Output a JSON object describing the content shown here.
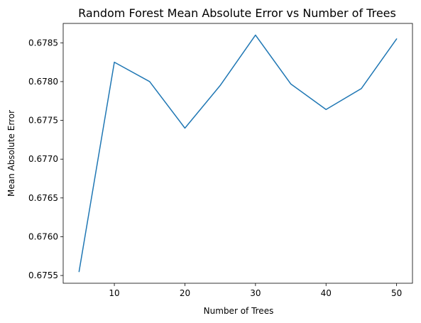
{
  "chart_data": {
    "type": "line",
    "title": "Random Forest Mean Absolute Error vs Number of Trees",
    "xlabel": "Number of Trees",
    "ylabel": "Mean Absolute Error",
    "x": [
      5,
      10,
      15,
      20,
      25,
      30,
      35,
      40,
      45,
      50
    ],
    "series": [
      {
        "values": [
          0.67555,
          0.67825,
          0.678,
          0.6774,
          0.67795,
          0.6786,
          0.67797,
          0.67764,
          0.67791,
          0.67855
        ],
        "color": "#1f77b4"
      }
    ],
    "xlim": [
      2.75,
      52.25
    ],
    "ylim": [
      0.6754,
      0.67875
    ],
    "xticks": [
      10,
      20,
      30,
      40,
      50
    ],
    "xtick_labels": [
      "10",
      "20",
      "30",
      "40",
      "50"
    ],
    "yticks": [
      0.6755,
      0.676,
      0.6765,
      0.677,
      0.6775,
      0.678,
      0.6785
    ],
    "ytick_labels": [
      "0.6755",
      "0.6760",
      "0.6765",
      "0.6770",
      "0.6775",
      "0.6780",
      "0.6785"
    ],
    "grid": false,
    "legend": "none"
  }
}
